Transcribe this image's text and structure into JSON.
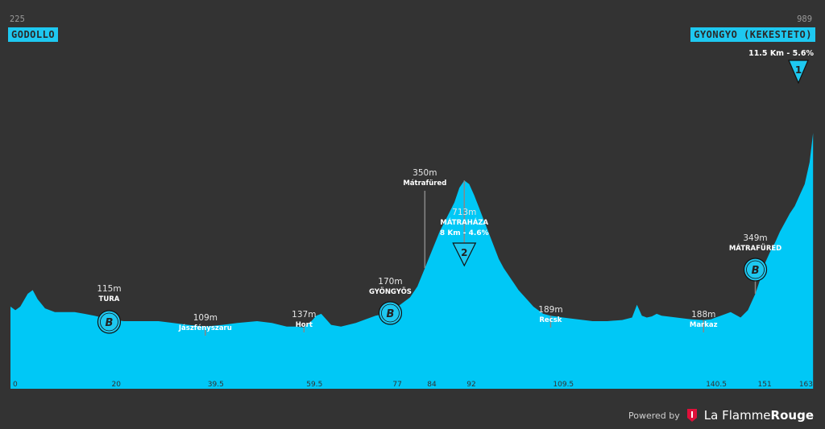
{
  "start": {
    "altitude": "225",
    "name": "GODOLLO"
  },
  "finish": {
    "altitude": "989",
    "name": "GYONGYO (KEKESTETO)",
    "climb_info": "11.5 Km - 5.6%",
    "category": "1"
  },
  "chart_data": {
    "type": "area",
    "title": "",
    "xlabel": "",
    "ylabel": "",
    "x_ticks": [
      "0",
      "20",
      "39.5",
      "59.5",
      "77",
      "84",
      "92",
      "109.5",
      "140.5",
      "151",
      "163"
    ],
    "x_range": [
      0,
      163
    ],
    "profile": {
      "x": [
        0,
        1,
        2,
        3.5,
        4.5,
        5.5,
        7,
        9,
        11,
        13,
        15,
        17,
        20,
        23,
        26,
        30,
        33,
        36,
        39.5,
        43,
        46,
        50,
        53,
        56,
        58,
        59.5,
        61,
        62,
        63,
        64,
        65,
        67,
        70,
        72,
        74,
        76,
        77,
        79,
        81,
        82.5,
        84,
        85.5,
        87,
        88.5,
        90,
        91,
        92,
        93,
        94,
        95,
        96,
        97,
        98,
        99,
        100,
        101,
        102,
        103,
        104,
        105,
        106,
        107,
        108,
        109.5,
        112,
        115,
        118,
        121,
        124,
        126,
        127,
        128,
        129,
        130,
        131,
        132,
        135,
        138,
        140.5,
        142,
        144,
        146,
        148,
        149.5,
        151,
        152,
        153,
        154,
        155,
        156,
        157,
        158,
        159,
        160,
        161,
        162,
        162.7
      ],
      "elevation": [
        225,
        215,
        225,
        260,
        270,
        245,
        220,
        210,
        210,
        210,
        205,
        200,
        190,
        185,
        185,
        185,
        180,
        175,
        170,
        175,
        180,
        185,
        180,
        170,
        170,
        168,
        185,
        200,
        205,
        190,
        175,
        170,
        180,
        190,
        200,
        205,
        215,
        230,
        250,
        280,
        330,
        380,
        430,
        470,
        510,
        550,
        570,
        560,
        530,
        495,
        460,
        425,
        390,
        355,
        330,
        310,
        290,
        270,
        255,
        240,
        225,
        215,
        205,
        200,
        195,
        190,
        185,
        185,
        188,
        195,
        230,
        200,
        195,
        198,
        205,
        200,
        195,
        190,
        188,
        190,
        200,
        210,
        195,
        215,
        260,
        300,
        345,
        375,
        400,
        430,
        455,
        480,
        500,
        530,
        560,
        620,
        700,
        780
      ]
    },
    "ylim": [
      0,
      1000
    ],
    "markers": [
      {
        "x": 20,
        "alt": "115m",
        "name": "TURA",
        "icon": "B",
        "bold_name": true
      },
      {
        "x": 39.5,
        "alt": "109m",
        "name": "Jászfényszaru",
        "icon": "",
        "bold_name": false
      },
      {
        "x": 59.5,
        "alt": "137m",
        "name": "Hort",
        "icon": "",
        "bold_name": false
      },
      {
        "x": 77,
        "alt": "170m",
        "name": "GYÖNGYÖS",
        "icon": "B",
        "bold_name": true
      },
      {
        "x": 84,
        "alt": "350m",
        "name": "Mátrafüred",
        "icon": "",
        "bold_name": false
      },
      {
        "x": 92,
        "alt": "713m",
        "name": "MÁTRAHÁZA",
        "sub": "8 Km - 4.6%",
        "icon": "2",
        "bold_name": true
      },
      {
        "x": 109.5,
        "alt": "189m",
        "name": "Recsk",
        "icon": "",
        "bold_name": false
      },
      {
        "x": 140.5,
        "alt": "188m",
        "name": "Markaz",
        "icon": "",
        "bold_name": false
      },
      {
        "x": 151,
        "alt": "349m",
        "name": "MÁTRAFÜRED",
        "icon": "B",
        "bold_name": true
      }
    ]
  },
  "colors": {
    "profile": "#00c8f6",
    "background": "#333333",
    "box": "#1ec8f0"
  },
  "footer": {
    "powered": "Powered by",
    "brand_a": "La Flamme",
    "brand_b": "Rouge"
  }
}
